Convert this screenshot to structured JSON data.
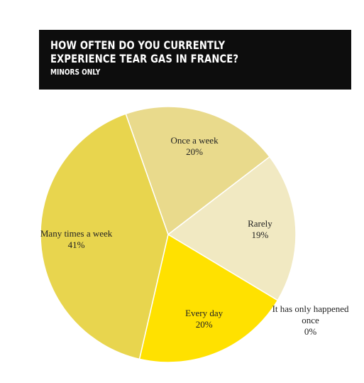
{
  "chart_data": {
    "type": "pie",
    "title": "HOW OFTEN DO YOU CURRENTLY EXPERIENCE TEAR GAS IN FRANCE?",
    "subtitle": "MINORS ONLY",
    "categories": [
      "Once a week",
      "Rarely",
      "It has only happened once",
      "Every day",
      "Many times a week"
    ],
    "values": [
      20,
      19,
      0,
      20,
      41
    ],
    "value_labels": [
      "20%",
      "19%",
      "0%",
      "20%",
      "41%"
    ],
    "colors": [
      "#e9da8c",
      "#f1e9c2",
      "#f5f0d8",
      "#ffe100",
      "#e8d54e"
    ]
  }
}
